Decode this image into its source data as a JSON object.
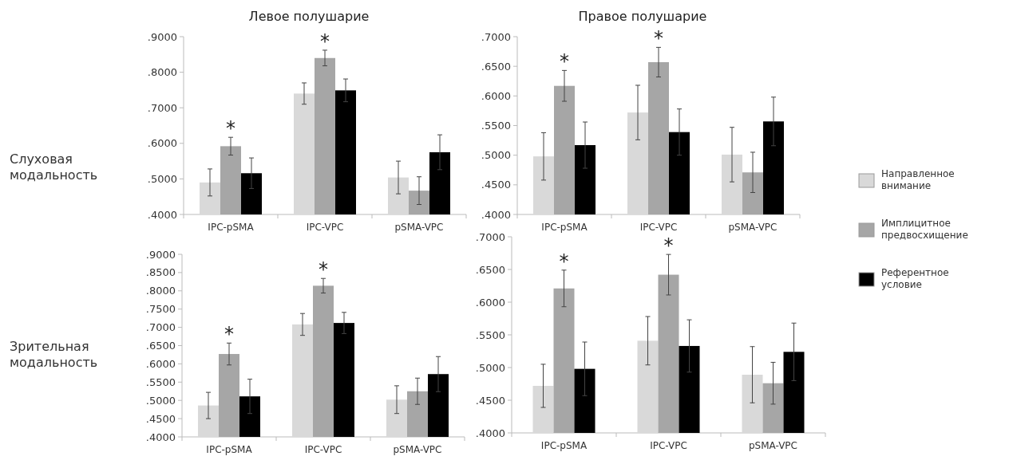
{
  "chart_data": [
    {
      "type": "bar",
      "title": "Левое полушарие",
      "ylabel": "Слуховая модальность",
      "categories": [
        "IPC-pSMA",
        "IPC-VPC",
        "pSMA-VPC"
      ],
      "ylim": [
        0.4,
        0.9
      ],
      "yticks": [
        {
          "value": 0.4,
          "label": ".4000"
        },
        {
          "value": 0.5,
          "label": ".5000"
        },
        {
          "value": 0.6,
          "label": ".6000"
        },
        {
          "value": 0.7,
          "label": ".7000"
        },
        {
          "value": 0.8,
          "label": ".8000"
        },
        {
          "value": 0.9,
          "label": ".9000"
        }
      ],
      "series": [
        {
          "color": "#d9d9d9",
          "values": [
            0.49,
            0.74,
            0.504
          ],
          "errors": [
            0.038,
            0.03,
            0.046
          ]
        },
        {
          "color": "#a6a6a6",
          "values": [
            0.592,
            0.84,
            0.467
          ],
          "errors": [
            0.025,
            0.022,
            0.039
          ]
        },
        {
          "color": "#000000",
          "values": [
            0.516,
            0.749,
            0.575
          ],
          "errors": [
            0.043,
            0.032,
            0.049
          ]
        }
      ],
      "annotations": [
        "*",
        "*"
      ]
    },
    {
      "type": "bar",
      "title": "Правое полушарие",
      "categories": [
        "IPC-pSMA",
        "IPC-VPC",
        "pSMA-VPC"
      ],
      "ylim": [
        0.4,
        0.7
      ],
      "yticks": [
        {
          "value": 0.4,
          "label": ".4000"
        },
        {
          "value": 0.45,
          "label": ".4500"
        },
        {
          "value": 0.5,
          "label": ".5000"
        },
        {
          "value": 0.55,
          "label": ".5500"
        },
        {
          "value": 0.6,
          "label": ".6000"
        },
        {
          "value": 0.65,
          "label": ".6500"
        },
        {
          "value": 0.7,
          "label": ".7000"
        }
      ],
      "legend": "right",
      "series": [
        {
          "name": "Направленное внимание",
          "color": "#d9d9d9",
          "values": [
            0.498,
            0.572,
            0.501
          ],
          "errors": [
            0.04,
            0.046,
            0.046
          ]
        },
        {
          "name": "Имплицитное предвосхищение",
          "color": "#a6a6a6",
          "values": [
            0.617,
            0.657,
            0.471
          ],
          "errors": [
            0.026,
            0.025,
            0.034
          ]
        },
        {
          "name": "Референтное условие",
          "color": "#000000",
          "values": [
            0.517,
            0.539,
            0.557
          ],
          "errors": [
            0.039,
            0.039,
            0.041
          ]
        }
      ],
      "annotations": [
        "*",
        "*"
      ]
    },
    {
      "type": "bar",
      "ylabel": "Зрительная модальность",
      "categories": [
        "IPC-pSMA",
        "IPC-VPC",
        "pSMA-VPC"
      ],
      "ylim": [
        0.4,
        0.9
      ],
      "yticks": [
        {
          "value": 0.4,
          "label": ".4000"
        },
        {
          "value": 0.45,
          "label": ".4500"
        },
        {
          "value": 0.5,
          "label": ".5000"
        },
        {
          "value": 0.55,
          "label": ".5500"
        },
        {
          "value": 0.6,
          "label": ".6000"
        },
        {
          "value": 0.65,
          "label": ".6500"
        },
        {
          "value": 0.7,
          "label": ".7000"
        },
        {
          "value": 0.75,
          "label": ".7500"
        },
        {
          "value": 0.8,
          "label": ".8000"
        },
        {
          "value": 0.85,
          "label": ".8500"
        },
        {
          "value": 0.9,
          "label": ".9000"
        }
      ],
      "series": [
        {
          "color": "#d9d9d9",
          "values": [
            0.486,
            0.708,
            0.502
          ],
          "errors": [
            0.036,
            0.03,
            0.038
          ]
        },
        {
          "color": "#a6a6a6",
          "values": [
            0.627,
            0.814,
            0.525
          ],
          "errors": [
            0.03,
            0.02,
            0.036
          ]
        },
        {
          "color": "#000000",
          "values": [
            0.511,
            0.712,
            0.572
          ],
          "errors": [
            0.047,
            0.029,
            0.048
          ]
        }
      ],
      "annotations": [
        "*",
        "*"
      ]
    },
    {
      "type": "bar",
      "categories": [
        "IPC-pSMA",
        "IPC-VPC",
        "pSMA-VPC"
      ],
      "ylim": [
        0.4,
        0.7
      ],
      "yticks": [
        {
          "value": 0.4,
          "label": ".4000"
        },
        {
          "value": 0.45,
          "label": ".4500"
        },
        {
          "value": 0.5,
          "label": ".5000"
        },
        {
          "value": 0.55,
          "label": ".5500"
        },
        {
          "value": 0.6,
          "label": ".6000"
        },
        {
          "value": 0.65,
          "label": ".6500"
        },
        {
          "value": 0.7,
          "label": ".7000"
        }
      ],
      "series": [
        {
          "color": "#d9d9d9",
          "values": [
            0.472,
            0.541,
            0.489
          ],
          "errors": [
            0.033,
            0.037,
            0.043
          ]
        },
        {
          "color": "#a6a6a6",
          "values": [
            0.621,
            0.642,
            0.476
          ],
          "errors": [
            0.028,
            0.031,
            0.032
          ]
        },
        {
          "color": "#000000",
          "values": [
            0.498,
            0.533,
            0.524
          ],
          "errors": [
            0.041,
            0.04,
            0.044
          ]
        }
      ],
      "annotations": [
        "*",
        "*"
      ]
    }
  ]
}
